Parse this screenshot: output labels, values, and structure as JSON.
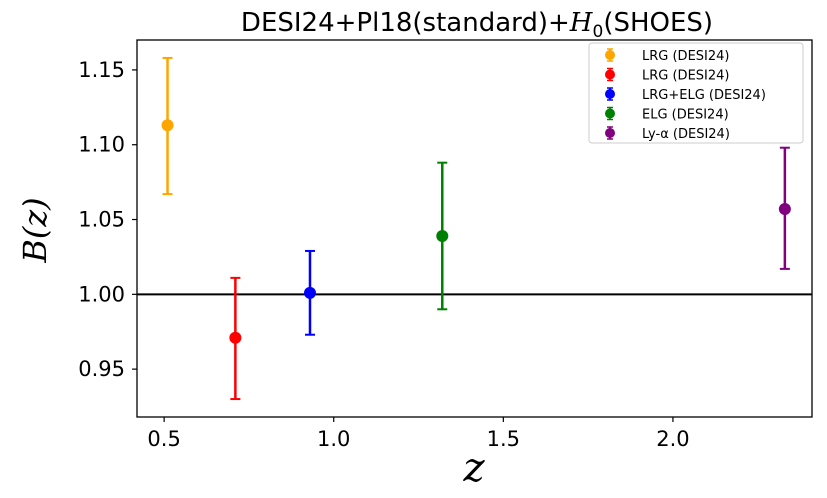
{
  "chart_data": {
    "type": "scatter",
    "title": "DESI24+Pl18(standard)+H0(SHOES)",
    "title_parts": {
      "prefix": "DESI24+Pl18(standard)+",
      "var": "H",
      "sub": "0",
      "suffix": "(SHOES)"
    },
    "xlabel": "z",
    "ylabel": "B(z)",
    "xlim": [
      0.42,
      2.41
    ],
    "ylim": [
      0.918,
      1.17
    ],
    "xticks": [
      0.5,
      1.0,
      1.5,
      2.0
    ],
    "xtick_labels": [
      "0.5",
      "1.0",
      "1.5",
      "2.0"
    ],
    "yticks": [
      0.95,
      1.0,
      1.05,
      1.1,
      1.15
    ],
    "ytick_labels": [
      "0.95",
      "1.00",
      "1.05",
      "1.10",
      "1.15"
    ],
    "reference_line": {
      "y": 1.0,
      "color": "#000000"
    },
    "grid": false,
    "legend_position": "top-right",
    "series": [
      {
        "name": "LRG (DESI24)",
        "color": "#ffa500",
        "x": 0.51,
        "y": 1.113,
        "err_low": 0.046,
        "err_high": 0.045
      },
      {
        "name": "LRG (DESI24)",
        "color": "#ff0000",
        "x": 0.71,
        "y": 0.971,
        "err_low": 0.041,
        "err_high": 0.04
      },
      {
        "name": "LRG+ELG (DESI24)",
        "color": "#0000ff",
        "x": 0.93,
        "y": 1.001,
        "err_low": 0.028,
        "err_high": 0.028
      },
      {
        "name": "ELG (DESI24)",
        "color": "#008000",
        "x": 1.32,
        "y": 1.039,
        "err_low": 0.049,
        "err_high": 0.049
      },
      {
        "name": "Ly-α (DESI24)",
        "color": "#800080",
        "x": 2.33,
        "y": 1.057,
        "err_low": 0.04,
        "err_high": 0.041
      }
    ]
  }
}
